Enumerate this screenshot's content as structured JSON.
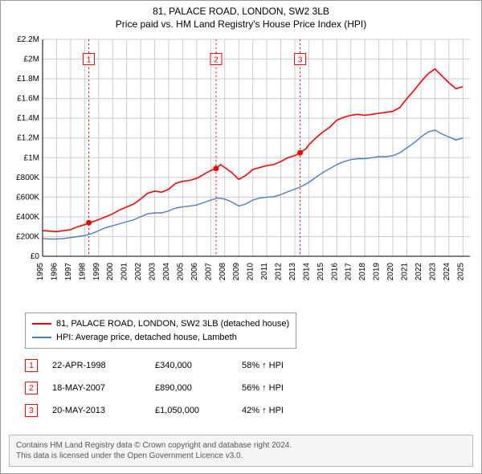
{
  "title_line1": "81, PALACE ROAD, LONDON, SW2 3LB",
  "title_line2": "Price paid vs. HM Land Registry's House Price Index (HPI)",
  "chart": {
    "type": "line",
    "background_color": "#ffffff",
    "grid_color": "#cccccc",
    "axis_color": "#000000",
    "x_years": [
      1995,
      1996,
      1997,
      1998,
      1999,
      2000,
      2001,
      2002,
      2003,
      2004,
      2005,
      2006,
      2007,
      2008,
      2009,
      2010,
      2011,
      2012,
      2013,
      2014,
      2015,
      2016,
      2017,
      2018,
      2019,
      2020,
      2021,
      2022,
      2023,
      2024,
      2025
    ],
    "xlim": [
      1995,
      2025.5
    ],
    "ylim": [
      0,
      2200000
    ],
    "ytick_step": 200000,
    "ytick_labels": [
      "£0",
      "£200K",
      "£400K",
      "£600K",
      "£800K",
      "£1M",
      "£1.2M",
      "£1.4M",
      "£1.6M",
      "£1.8M",
      "£2M",
      "£2.2M"
    ],
    "series": [
      {
        "name": "81, PALACE ROAD, LONDON, SW2 3LB (detached house)",
        "color": "#ff0000",
        "width": 1.6,
        "data": [
          [
            1995.0,
            260000
          ],
          [
            1995.5,
            255000
          ],
          [
            1996.0,
            250000
          ],
          [
            1996.5,
            260000
          ],
          [
            1997.0,
            270000
          ],
          [
            1997.5,
            300000
          ],
          [
            1998.0,
            320000
          ],
          [
            1998.3,
            340000
          ],
          [
            1998.8,
            360000
          ],
          [
            1999.5,
            400000
          ],
          [
            2000.0,
            430000
          ],
          [
            2000.5,
            470000
          ],
          [
            2001.0,
            500000
          ],
          [
            2001.5,
            530000
          ],
          [
            2002.0,
            580000
          ],
          [
            2002.5,
            640000
          ],
          [
            2003.0,
            660000
          ],
          [
            2003.5,
            650000
          ],
          [
            2004.0,
            680000
          ],
          [
            2004.5,
            740000
          ],
          [
            2005.0,
            760000
          ],
          [
            2005.5,
            770000
          ],
          [
            2006.0,
            790000
          ],
          [
            2006.5,
            830000
          ],
          [
            2007.0,
            870000
          ],
          [
            2007.38,
            890000
          ],
          [
            2007.7,
            930000
          ],
          [
            2008.0,
            900000
          ],
          [
            2008.5,
            850000
          ],
          [
            2009.0,
            780000
          ],
          [
            2009.5,
            820000
          ],
          [
            2010.0,
            880000
          ],
          [
            2010.5,
            900000
          ],
          [
            2011.0,
            920000
          ],
          [
            2011.5,
            930000
          ],
          [
            2012.0,
            960000
          ],
          [
            2012.5,
            1000000
          ],
          [
            2013.0,
            1020000
          ],
          [
            2013.38,
            1050000
          ],
          [
            2013.8,
            1090000
          ],
          [
            2014.0,
            1130000
          ],
          [
            2014.5,
            1200000
          ],
          [
            2015.0,
            1260000
          ],
          [
            2015.5,
            1310000
          ],
          [
            2016.0,
            1380000
          ],
          [
            2016.5,
            1410000
          ],
          [
            2017.0,
            1430000
          ],
          [
            2017.5,
            1440000
          ],
          [
            2018.0,
            1430000
          ],
          [
            2018.5,
            1440000
          ],
          [
            2019.0,
            1450000
          ],
          [
            2019.5,
            1460000
          ],
          [
            2020.0,
            1470000
          ],
          [
            2020.5,
            1510000
          ],
          [
            2021.0,
            1600000
          ],
          [
            2021.5,
            1680000
          ],
          [
            2022.0,
            1770000
          ],
          [
            2022.5,
            1850000
          ],
          [
            2023.0,
            1900000
          ],
          [
            2023.5,
            1830000
          ],
          [
            2024.0,
            1760000
          ],
          [
            2024.5,
            1700000
          ],
          [
            2025.0,
            1720000
          ]
        ]
      },
      {
        "name": "HPI: Average price, detached house, Lambeth",
        "color": "#4a7dc9",
        "width": 1.4,
        "data": [
          [
            1995.0,
            180000
          ],
          [
            1995.5,
            175000
          ],
          [
            1996.0,
            175000
          ],
          [
            1996.5,
            180000
          ],
          [
            1997.0,
            190000
          ],
          [
            1997.5,
            200000
          ],
          [
            1998.0,
            210000
          ],
          [
            1998.5,
            230000
          ],
          [
            1999.0,
            260000
          ],
          [
            1999.5,
            290000
          ],
          [
            2000.0,
            310000
          ],
          [
            2000.5,
            330000
          ],
          [
            2001.0,
            350000
          ],
          [
            2001.5,
            370000
          ],
          [
            2002.0,
            400000
          ],
          [
            2002.5,
            430000
          ],
          [
            2003.0,
            440000
          ],
          [
            2003.5,
            440000
          ],
          [
            2004.0,
            460000
          ],
          [
            2004.5,
            490000
          ],
          [
            2005.0,
            500000
          ],
          [
            2005.5,
            510000
          ],
          [
            2006.0,
            520000
          ],
          [
            2006.5,
            545000
          ],
          [
            2007.0,
            570000
          ],
          [
            2007.5,
            590000
          ],
          [
            2008.0,
            580000
          ],
          [
            2008.5,
            550000
          ],
          [
            2009.0,
            510000
          ],
          [
            2009.5,
            530000
          ],
          [
            2010.0,
            570000
          ],
          [
            2010.5,
            590000
          ],
          [
            2011.0,
            600000
          ],
          [
            2011.5,
            605000
          ],
          [
            2012.0,
            625000
          ],
          [
            2012.5,
            655000
          ],
          [
            2013.0,
            680000
          ],
          [
            2013.5,
            710000
          ],
          [
            2014.0,
            750000
          ],
          [
            2014.5,
            800000
          ],
          [
            2015.0,
            850000
          ],
          [
            2015.5,
            890000
          ],
          [
            2016.0,
            930000
          ],
          [
            2016.5,
            960000
          ],
          [
            2017.0,
            980000
          ],
          [
            2017.5,
            990000
          ],
          [
            2018.0,
            990000
          ],
          [
            2018.5,
            1000000
          ],
          [
            2019.0,
            1010000
          ],
          [
            2019.5,
            1010000
          ],
          [
            2020.0,
            1020000
          ],
          [
            2020.5,
            1050000
          ],
          [
            2021.0,
            1100000
          ],
          [
            2021.5,
            1150000
          ],
          [
            2022.0,
            1210000
          ],
          [
            2022.5,
            1260000
          ],
          [
            2023.0,
            1280000
          ],
          [
            2023.5,
            1240000
          ],
          [
            2024.0,
            1210000
          ],
          [
            2024.5,
            1180000
          ],
          [
            2025.0,
            1200000
          ]
        ]
      }
    ],
    "sale_markers": [
      {
        "num": "1",
        "x": 1998.3,
        "y": 340000
      },
      {
        "num": "2",
        "x": 2007.38,
        "y": 890000
      },
      {
        "num": "3",
        "x": 2013.38,
        "y": 1050000
      }
    ],
    "marker_line_color": "#ff0000",
    "marker_box_border": "#ff0000",
    "marker_dot_color": "#ff0000",
    "marker_box_top_y": 2000000
  },
  "legend": {
    "items": [
      {
        "color": "#ff0000",
        "label": "81, PALACE ROAD, LONDON, SW2 3LB (detached house)"
      },
      {
        "color": "#4a7dc9",
        "label": "HPI: Average price, detached house, Lambeth"
      }
    ]
  },
  "sales": [
    {
      "num": "1",
      "date": "22-APR-1998",
      "price": "£340,000",
      "diff": "58% ↑ HPI"
    },
    {
      "num": "2",
      "date": "18-MAY-2007",
      "price": "£890,000",
      "diff": "56% ↑ HPI"
    },
    {
      "num": "3",
      "date": "20-MAY-2013",
      "price": "£1,050,000",
      "diff": "42% ↑ HPI"
    }
  ],
  "ogl": {
    "line1": "Contains HM Land Registry data © Crown copyright and database right 2024.",
    "line2": "This data is licensed under the Open Government Licence v3.0."
  }
}
